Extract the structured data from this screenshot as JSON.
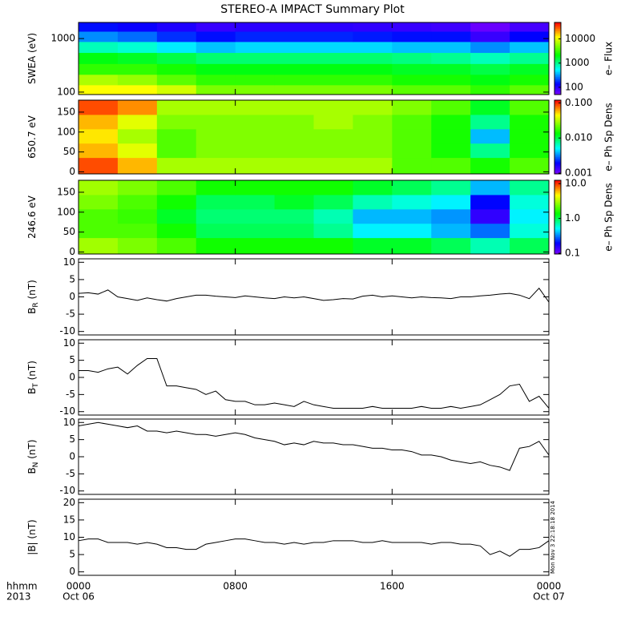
{
  "chart_data": [
    {
      "type": "heatmap",
      "title": "STEREO-A IMPACT Summary Plot",
      "ylabel": "SWEA (eV)",
      "ylog": true,
      "ylim": [
        90,
        2000
      ],
      "yticks": [
        100,
        1000
      ],
      "xlim": [
        0,
        24
      ],
      "xticks": [
        0,
        8,
        16,
        24
      ],
      "x": [
        1,
        3,
        5,
        7,
        9,
        11,
        13,
        15,
        17,
        19,
        21,
        23
      ],
      "y": [
        110,
        170,
        270,
        430,
        700,
        1100,
        1700
      ],
      "z": [
        [
          12000,
          12000,
          9000,
          5000,
          5000,
          5000,
          5000,
          5000,
          4000,
          4000,
          3000,
          4000
        ],
        [
          7000,
          6000,
          4000,
          3000,
          3000,
          3000,
          3000,
          3000,
          2500,
          2500,
          2000,
          2500
        ],
        [
          3000,
          3000,
          2500,
          2000,
          2000,
          2000,
          2000,
          2000,
          1800,
          1800,
          1500,
          1800
        ],
        [
          2000,
          1800,
          1500,
          1200,
          1200,
          1200,
          1200,
          1200,
          1100,
          1000,
          800,
          1000
        ],
        [
          800,
          700,
          500,
          400,
          450,
          450,
          450,
          450,
          400,
          400,
          300,
          400
        ],
        [
          300,
          250,
          180,
          150,
          170,
          170,
          170,
          160,
          150,
          150,
          90,
          140
        ],
        [
          150,
          130,
          110,
          90,
          100,
          100,
          100,
          95,
          90,
          85,
          60,
          80
        ]
      ],
      "zlog": true,
      "zlim": [
        50,
        48000
      ],
      "zticks": [
        100,
        1000,
        10000
      ],
      "colormap": "rainbow",
      "colorbar_label": "e– Flux"
    },
    {
      "type": "heatmap",
      "ylabel": "650.7 eV",
      "ylog": false,
      "ylim": [
        -5,
        180
      ],
      "yticks": [
        0,
        50,
        100,
        150
      ],
      "xlim": [
        0,
        24
      ],
      "xticks": [
        0,
        8,
        16,
        24
      ],
      "x": [
        1,
        3,
        5,
        7,
        9,
        11,
        13,
        15,
        17,
        19,
        21,
        23
      ],
      "y": [
        18,
        54,
        90,
        126,
        162
      ],
      "z": [
        [
          0.09,
          0.06,
          0.03,
          0.03,
          0.03,
          0.03,
          0.03,
          0.03,
          0.02,
          0.02,
          0.015,
          0.02
        ],
        [
          0.06,
          0.04,
          0.02,
          0.025,
          0.025,
          0.025,
          0.025,
          0.025,
          0.02,
          0.015,
          0.008,
          0.015
        ],
        [
          0.05,
          0.03,
          0.02,
          0.025,
          0.025,
          0.025,
          0.025,
          0.025,
          0.02,
          0.015,
          0.004,
          0.015
        ],
        [
          0.06,
          0.04,
          0.025,
          0.025,
          0.025,
          0.025,
          0.03,
          0.025,
          0.02,
          0.015,
          0.008,
          0.015
        ],
        [
          0.09,
          0.07,
          0.03,
          0.03,
          0.03,
          0.03,
          0.03,
          0.03,
          0.025,
          0.02,
          0.012,
          0.02
        ]
      ],
      "zlog": true,
      "zlim": [
        0.00095,
        0.12
      ],
      "zticks": [
        0.001,
        {
          "value": 0.01,
          "label": "0.010"
        },
        {
          "value": 0.1,
          "label": "0.100"
        }
      ],
      "colormap": "rainbow",
      "colorbar_label": "e– Ph Sp Dens"
    },
    {
      "type": "heatmap",
      "ylabel": "246.6 eV",
      "ylog": false,
      "ylim": [
        -5,
        180
      ],
      "yticks": [
        0,
        50,
        100,
        150
      ],
      "xlim": [
        0,
        24
      ],
      "xticks": [
        0,
        8,
        16,
        24
      ],
      "x": [
        1,
        3,
        5,
        7,
        9,
        11,
        13,
        15,
        17,
        19,
        21,
        23
      ],
      "y": [
        18,
        54,
        90,
        126,
        162
      ],
      "z": [
        [
          3,
          2.5,
          2,
          1.5,
          1.5,
          1.5,
          1.5,
          1.2,
          1.2,
          1,
          0.7,
          1
        ],
        [
          2,
          2,
          1.5,
          1,
          1,
          1,
          0.8,
          0.5,
          0.5,
          0.4,
          0.3,
          0.6
        ],
        [
          2,
          1.8,
          1.2,
          0.9,
          0.9,
          0.9,
          0.7,
          0.4,
          0.4,
          0.35,
          0.15,
          0.5
        ],
        [
          2.5,
          2,
          1.5,
          1,
          1,
          1.2,
          1,
          0.7,
          0.6,
          0.5,
          0.2,
          0.6
        ],
        [
          3,
          2.5,
          2,
          1.5,
          1.5,
          1.5,
          1.5,
          1.2,
          1,
          0.8,
          0.4,
          0.8
        ]
      ],
      "zlog": true,
      "zlim": [
        0.095,
        12.5
      ],
      "zticks": [
        0.1,
        {
          "value": 1,
          "label": "1.0"
        },
        {
          "value": 10,
          "label": "10.0"
        }
      ],
      "colormap": "rainbow",
      "colorbar_label": "e– Ph Sp Dens"
    },
    {
      "type": "line",
      "ylabel": "B",
      "ylabel_sub": "R",
      "ylabel_unit": " (nT)",
      "color": "#000000",
      "ylim": [
        -11,
        11
      ],
      "yticks": [
        -10,
        -5,
        0,
        5,
        10
      ],
      "xlim": [
        0,
        24
      ],
      "xticks": [
        0,
        8,
        16,
        24
      ],
      "x": [
        0,
        0.5,
        1,
        1.5,
        2,
        2.5,
        3,
        3.5,
        4,
        4.5,
        5,
        5.5,
        6,
        6.5,
        7,
        7.5,
        8,
        8.5,
        9,
        9.5,
        10,
        10.5,
        11,
        11.5,
        12,
        12.5,
        13,
        13.5,
        14,
        14.5,
        15,
        15.5,
        16,
        16.5,
        17,
        17.5,
        18,
        18.5,
        19,
        19.5,
        20,
        20.5,
        21,
        21.5,
        22,
        22.5,
        23,
        23.5,
        24
      ],
      "values": [
        1,
        1.2,
        0.8,
        2,
        0,
        -0.5,
        -1,
        -0.3,
        -0.8,
        -1.2,
        -0.5,
        0,
        0.5,
        0.5,
        0.2,
        0,
        -0.2,
        0.3,
        0,
        -0.3,
        -0.5,
        0,
        -0.3,
        0,
        -0.5,
        -1,
        -0.8,
        -0.5,
        -0.6,
        0.2,
        0.5,
        0,
        0.3,
        0,
        -0.3,
        0,
        -0.2,
        -0.3,
        -0.5,
        0,
        0,
        0.3,
        0.5,
        0.8,
        1,
        0.5,
        -0.5,
        2.5,
        -1.5
      ]
    },
    {
      "type": "line",
      "ylabel": "B",
      "ylabel_sub": "T",
      "ylabel_unit": " (nT)",
      "color": "#000000",
      "ylim": [
        -11,
        11
      ],
      "yticks": [
        -10,
        -5,
        0,
        5,
        10
      ],
      "xlim": [
        0,
        24
      ],
      "xticks": [
        0,
        8,
        16,
        24
      ],
      "x": [
        0,
        0.5,
        1,
        1.5,
        2,
        2.5,
        3,
        3.5,
        4,
        4.5,
        5,
        5.5,
        6,
        6.5,
        7,
        7.5,
        8,
        8.5,
        9,
        9.5,
        10,
        10.5,
        11,
        11.5,
        12,
        12.5,
        13,
        13.5,
        14,
        14.5,
        15,
        15.5,
        16,
        16.5,
        17,
        17.5,
        18,
        18.5,
        19,
        19.5,
        20,
        20.5,
        21,
        21.5,
        22,
        22.5,
        23,
        23.5,
        24
      ],
      "values": [
        2,
        2,
        1.5,
        2.5,
        3,
        1,
        3.5,
        5.5,
        5.5,
        -2.5,
        -2.5,
        -3,
        -3.5,
        -5,
        -4,
        -6.5,
        -7,
        -7,
        -8,
        -8,
        -7.5,
        -8,
        -8.5,
        -7,
        -8,
        -8.5,
        -9,
        -9,
        -9,
        -9,
        -8.5,
        -9,
        -9,
        -9,
        -9,
        -8.5,
        -9,
        -9,
        -8.5,
        -9,
        -8.5,
        -8,
        -6.5,
        -5,
        -2.5,
        -2,
        -7,
        -5.5,
        -9
      ]
    },
    {
      "type": "line",
      "ylabel": "B",
      "ylabel_sub": "N",
      "ylabel_unit": " (nT)",
      "color": "#000000",
      "ylim": [
        -11,
        11
      ],
      "yticks": [
        -10,
        -5,
        0,
        5,
        10
      ],
      "xlim": [
        0,
        24
      ],
      "xticks": [
        0,
        8,
        16,
        24
      ],
      "x": [
        0,
        0.5,
        1,
        1.5,
        2,
        2.5,
        3,
        3.5,
        4,
        4.5,
        5,
        5.5,
        6,
        6.5,
        7,
        7.5,
        8,
        8.5,
        9,
        9.5,
        10,
        10.5,
        11,
        11.5,
        12,
        12.5,
        13,
        13.5,
        14,
        14.5,
        15,
        15.5,
        16,
        16.5,
        17,
        17.5,
        18,
        18.5,
        19,
        19.5,
        20,
        20.5,
        21,
        21.5,
        22,
        22.5,
        23,
        23.5,
        24
      ],
      "values": [
        9,
        9.5,
        10,
        9.5,
        9,
        8.5,
        9,
        7.5,
        7.5,
        7,
        7.5,
        7,
        6.5,
        6.5,
        6,
        6.5,
        7,
        6.5,
        5.5,
        5,
        4.5,
        3.5,
        4,
        3.5,
        4.5,
        4,
        4,
        3.5,
        3.5,
        3,
        2.5,
        2.5,
        2,
        2,
        1.5,
        0.5,
        0.5,
        0,
        -1,
        -1.5,
        -2,
        -1.5,
        -2.5,
        -3,
        -4,
        2.5,
        3,
        4.5,
        0.5
      ]
    },
    {
      "type": "line",
      "ylabel": "|B| (nT)",
      "color": "#000000",
      "ylim": [
        -1,
        21
      ],
      "yticks": [
        0,
        5,
        10,
        15,
        20
      ],
      "xlim": [
        0,
        24
      ],
      "xticks": [
        {
          "value": 0,
          "label": "0000"
        },
        {
          "value": 8,
          "label": "0800"
        },
        {
          "value": 16,
          "label": "1600"
        },
        {
          "value": 24,
          "label": "0000"
        }
      ],
      "x": [
        0,
        0.5,
        1,
        1.5,
        2,
        2.5,
        3,
        3.5,
        4,
        4.5,
        5,
        5.5,
        6,
        6.5,
        7,
        7.5,
        8,
        8.5,
        9,
        9.5,
        10,
        10.5,
        11,
        11.5,
        12,
        12.5,
        13,
        13.5,
        14,
        14.5,
        15,
        15.5,
        16,
        16.5,
        17,
        17.5,
        18,
        18.5,
        19,
        19.5,
        20,
        20.5,
        21,
        21.5,
        22,
        22.5,
        23,
        23.5,
        24
      ],
      "values": [
        9,
        9.5,
        9.5,
        8.5,
        8.5,
        8.5,
        8,
        8.5,
        8,
        7,
        7,
        6.5,
        6.5,
        8,
        8.5,
        9,
        9.5,
        9.5,
        9,
        8.5,
        8.5,
        8,
        8.5,
        8,
        8.5,
        8.5,
        9,
        9,
        9,
        8.5,
        8.5,
        9,
        8.5,
        8.5,
        8.5,
        8.5,
        8,
        8.5,
        8.5,
        8,
        8,
        7.5,
        5,
        6,
        4.5,
        6.5,
        6.5,
        7,
        9
      ],
      "date_labels": [
        "Oct 06",
        "Oct 07"
      ],
      "xlabel_lines": [
        "hhmm",
        "2013"
      ],
      "annotation": "Mon Nov  3 22:18:18 2014"
    }
  ]
}
